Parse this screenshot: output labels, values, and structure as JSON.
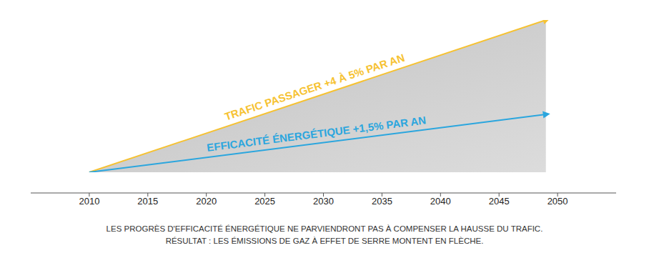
{
  "chart_data": {
    "type": "line",
    "x": [
      2010,
      2049
    ],
    "series": [
      {
        "name": "TRAFIC PASSAGER +4 À 5% PAR AN",
        "color": "#f6c232",
        "type": "area",
        "values": [
          0,
          100
        ]
      },
      {
        "name": "EFFICACITÉ ÉNERGÉTIQUE +1,5% PAR AN",
        "color": "#2ba6de",
        "values": [
          0,
          38
        ]
      }
    ],
    "xlim": [
      2005,
      2055
    ],
    "xticks": [
      2010,
      2015,
      2020,
      2025,
      2030,
      2035,
      2040,
      2045,
      2050
    ],
    "ylim": [
      0,
      100
    ],
    "tick_labels": "x",
    "grid": false,
    "caption": [
      "LES PROGRÈS D'EFFICACITÉ ÉNERGÉTIQUE NE PARVIENDRONT PAS À COMPENSER LA HAUSSE DU TRAFIC.",
      "RÉSULTAT : LES ÉMISSIONS DE GAZ À EFFET DE SERRE MONTENT EN FLÈCHE."
    ]
  }
}
